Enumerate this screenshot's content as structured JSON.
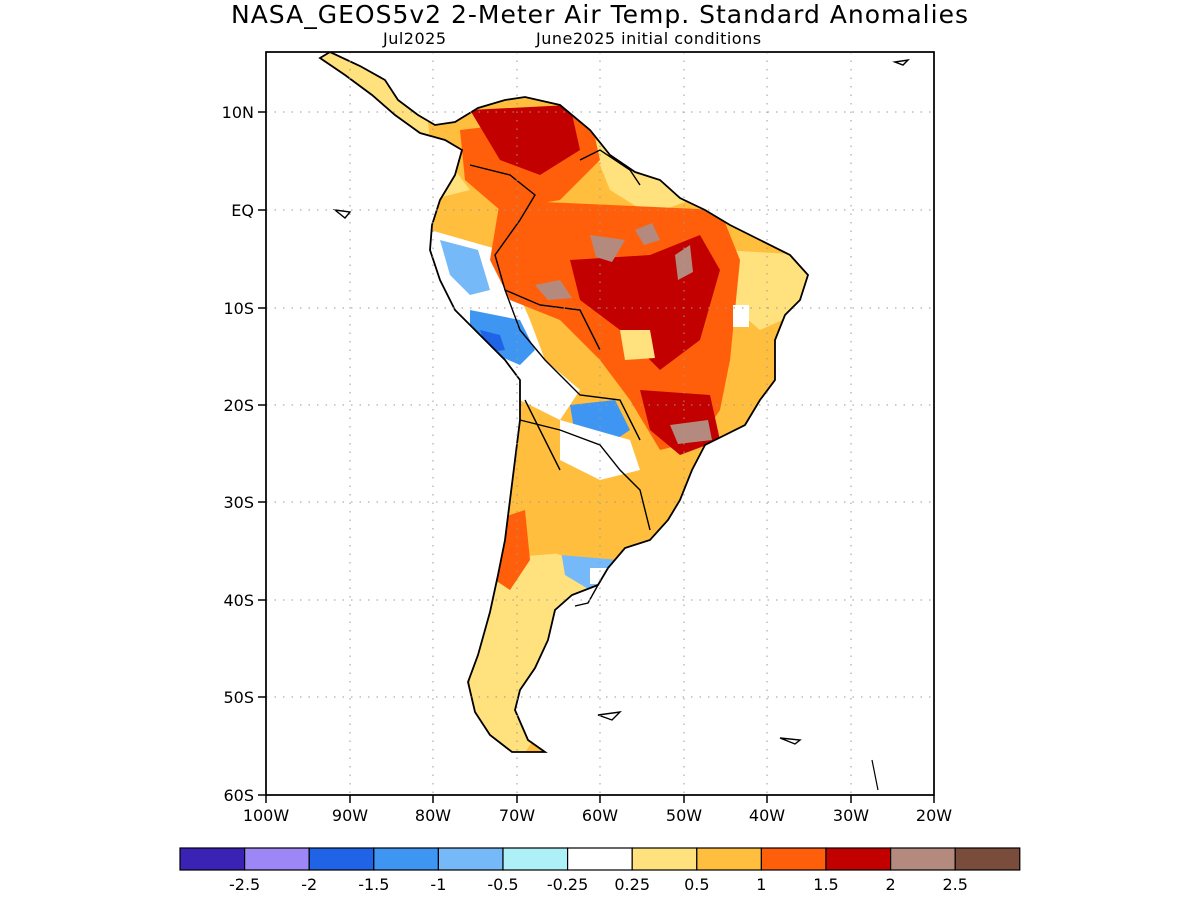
{
  "title": "NASA_GEOS5v2 2-Meter Air Temp. Standard Anomalies",
  "subtitle_left": "Jul2025",
  "subtitle_right": "June2025 initial conditions",
  "lat_labels": [
    "10N",
    "EQ",
    "10S",
    "20S",
    "30S",
    "40S",
    "50S",
    "60S"
  ],
  "lon_labels": [
    "100W",
    "90W",
    "80W",
    "70W",
    "60W",
    "50W",
    "40W",
    "30W",
    "20W"
  ],
  "colorbar": {
    "colors": [
      "#3a22b4",
      "#9d86f5",
      "#1f64e6",
      "#3f95f2",
      "#75b9f8",
      "#aef0f8",
      "#ffffff",
      "#ffe17e",
      "#ffbe3d",
      "#ff5f0a",
      "#c20000",
      "#b58a7e",
      "#7a4c3c"
    ],
    "labels": [
      "-2.5",
      "-2",
      "-1.5",
      "-1",
      "-0.5",
      "-0.25",
      "0.25",
      "0.5",
      "1",
      "1.5",
      "2",
      "2.5"
    ]
  }
}
